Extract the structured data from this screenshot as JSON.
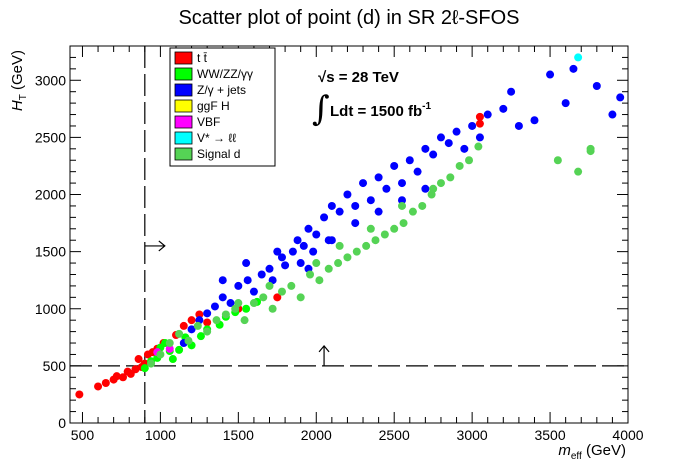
{
  "chart_data": {
    "type": "scatter",
    "title": "Scatter plot of point (d) in SR 2ℓ-SFOS",
    "xlabel": "m",
    "xlabel_sub": "eff",
    "xlabel_unit": " (GeV)",
    "ylabel": "H",
    "ylabel_sub": "T",
    "ylabel_unit": " (GeV)",
    "xlim": [
      420,
      4000
    ],
    "ylim": [
      0,
      3300
    ],
    "xticks": [
      500,
      1000,
      1500,
      2000,
      2500,
      3000,
      3500,
      4000
    ],
    "yticks": [
      0,
      500,
      1000,
      1500,
      2000,
      2500,
      3000
    ],
    "annotations": {
      "energy": "√s = 28 TeV",
      "lumi_prefix": "∫",
      "lumi_text": "Ldt = 1500 fb",
      "lumi_sup": "-1"
    },
    "cuts": {
      "meff_cut": 900,
      "ht_cut": 500,
      "arrow_right_label": "→",
      "arrow_up_label": "↑"
    },
    "legend": [
      {
        "label": "t t̄",
        "color": "#ff0000"
      },
      {
        "label": "WW/ZZ/γγ",
        "color": "#00ff00"
      },
      {
        "label": "Z/γ + jets",
        "color": "#0000ff"
      },
      {
        "label": "ggF H",
        "color": "#ffff00"
      },
      {
        "label": "VBF",
        "color": "#ff00ff"
      },
      {
        "label": "V* → ℓℓ",
        "color": "#00ffff"
      },
      {
        "label": "Signal d",
        "color": "#55d355"
      }
    ],
    "series": [
      {
        "name": "ttbar",
        "color": "#ff0000",
        "points": [
          [
            480,
            250
          ],
          [
            600,
            320
          ],
          [
            650,
            350
          ],
          [
            700,
            380
          ],
          [
            720,
            410
          ],
          [
            760,
            400
          ],
          [
            790,
            450
          ],
          [
            810,
            430
          ],
          [
            840,
            470
          ],
          [
            860,
            560
          ],
          [
            880,
            490
          ],
          [
            900,
            520
          ],
          [
            920,
            600
          ],
          [
            950,
            620
          ],
          [
            980,
            650
          ],
          [
            1020,
            700
          ],
          [
            1100,
            770
          ],
          [
            1150,
            850
          ],
          [
            1200,
            900
          ],
          [
            1250,
            950
          ],
          [
            1300,
            880
          ],
          [
            1500,
            1000
          ],
          [
            1750,
            1100
          ],
          [
            3050,
            2620
          ],
          [
            3050,
            2680
          ]
        ]
      },
      {
        "name": "WW/ZZ",
        "color": "#00ff00",
        "points": [
          [
            900,
            480
          ],
          [
            940,
            540
          ],
          [
            980,
            570
          ],
          [
            1000,
            660
          ],
          [
            1030,
            700
          ],
          [
            1060,
            630
          ],
          [
            1080,
            560
          ],
          [
            1120,
            640
          ],
          [
            1160,
            750
          ],
          [
            1200,
            680
          ],
          [
            1260,
            760
          ],
          [
            1300,
            820
          ],
          [
            1380,
            860
          ],
          [
            1420,
            930
          ],
          [
            1480,
            970
          ],
          [
            1550,
            1000
          ],
          [
            1620,
            1060
          ]
        ]
      },
      {
        "name": "Z/gamma + jets",
        "color": "#0000ff",
        "points": [
          [
            1150,
            700
          ],
          [
            1200,
            820
          ],
          [
            1250,
            900
          ],
          [
            1300,
            960
          ],
          [
            1350,
            1020
          ],
          [
            1400,
            1100
          ],
          [
            1450,
            1050
          ],
          [
            1500,
            1200
          ],
          [
            1560,
            1250
          ],
          [
            1600,
            1150
          ],
          [
            1650,
            1300
          ],
          [
            1700,
            1350
          ],
          [
            1720,
            1250
          ],
          [
            1780,
            1450
          ],
          [
            1800,
            1380
          ],
          [
            1850,
            1500
          ],
          [
            1880,
            1600
          ],
          [
            1900,
            1400
          ],
          [
            1920,
            1550
          ],
          [
            1950,
            1700
          ],
          [
            1980,
            1500
          ],
          [
            2000,
            1650
          ],
          [
            2050,
            1800
          ],
          [
            2080,
            1600
          ],
          [
            2100,
            1900
          ],
          [
            2150,
            1850
          ],
          [
            2200,
            2000
          ],
          [
            2250,
            1750
          ],
          [
            2300,
            2100
          ],
          [
            2350,
            1950
          ],
          [
            2400,
            2150
          ],
          [
            2450,
            2050
          ],
          [
            2500,
            2250
          ],
          [
            2550,
            2100
          ],
          [
            2600,
            2300
          ],
          [
            2650,
            2200
          ],
          [
            2700,
            2400
          ],
          [
            2750,
            2350
          ],
          [
            2800,
            2500
          ],
          [
            2850,
            2450
          ],
          [
            2900,
            2550
          ],
          [
            2950,
            2400
          ],
          [
            3000,
            2600
          ],
          [
            3050,
            2500
          ],
          [
            3100,
            2700
          ],
          [
            3200,
            2750
          ],
          [
            3250,
            2900
          ],
          [
            3300,
            2600
          ],
          [
            3400,
            2650
          ],
          [
            3500,
            3050
          ],
          [
            3600,
            2800
          ],
          [
            3650,
            3100
          ],
          [
            3800,
            2950
          ],
          [
            3900,
            2700
          ],
          [
            3950,
            2850
          ],
          [
            1400,
            1250
          ],
          [
            1550,
            1400
          ],
          [
            1750,
            1500
          ],
          [
            1950,
            1350
          ],
          [
            2100,
            1600
          ],
          [
            2250,
            1900
          ],
          [
            2400,
            1850
          ],
          [
            2550,
            1950
          ],
          [
            2700,
            2050
          ]
        ]
      },
      {
        "name": "VBF",
        "color": "#ff00ff",
        "points": [
          [
            980,
            620
          ],
          [
            1060,
            650
          ]
        ]
      },
      {
        "name": "V* to ll",
        "color": "#00ffff",
        "points": [
          [
            3680,
            3200
          ]
        ]
      },
      {
        "name": "Signal d",
        "color": "#55d355",
        "points": [
          [
            940,
            520
          ],
          [
            1000,
            600
          ],
          [
            1060,
            700
          ],
          [
            1120,
            780
          ],
          [
            1180,
            720
          ],
          [
            1240,
            850
          ],
          [
            1300,
            800
          ],
          [
            1360,
            900
          ],
          [
            1420,
            950
          ],
          [
            1480,
            1000
          ],
          [
            1540,
            900
          ],
          [
            1600,
            1050
          ],
          [
            1660,
            1100
          ],
          [
            1720,
            1000
          ],
          [
            1780,
            1150
          ],
          [
            1840,
            1200
          ],
          [
            1900,
            1100
          ],
          [
            1960,
            1300
          ],
          [
            2020,
            1250
          ],
          [
            2080,
            1350
          ],
          [
            2140,
            1400
          ],
          [
            2200,
            1450
          ],
          [
            2260,
            1500
          ],
          [
            2320,
            1550
          ],
          [
            2380,
            1600
          ],
          [
            2440,
            1650
          ],
          [
            2500,
            1700
          ],
          [
            2560,
            1750
          ],
          [
            2620,
            1850
          ],
          [
            2680,
            1900
          ],
          [
            2740,
            2000
          ],
          [
            2800,
            2100
          ],
          [
            2860,
            2150
          ],
          [
            2920,
            2250
          ],
          [
            2980,
            2300
          ],
          [
            3040,
            2420
          ],
          [
            3550,
            2300
          ],
          [
            3680,
            2200
          ],
          [
            3760,
            2380
          ],
          [
            3760,
            2400
          ],
          [
            1500,
            1050
          ],
          [
            1700,
            1200
          ],
          [
            2000,
            1400
          ],
          [
            2150,
            1550
          ],
          [
            2350,
            1700
          ],
          [
            2550,
            1900
          ],
          [
            2750,
            2050
          ]
        ]
      }
    ]
  }
}
